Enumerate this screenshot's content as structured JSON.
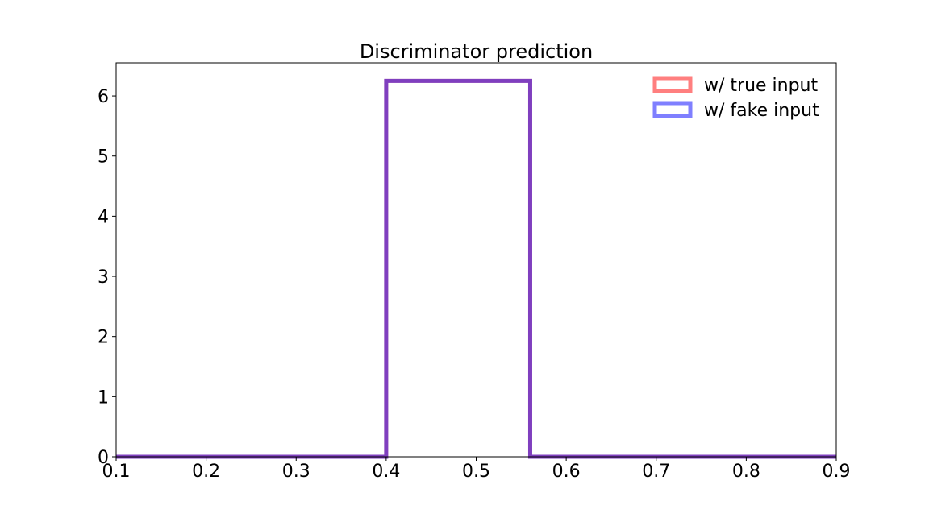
{
  "chart_data": {
    "type": "histogram-step",
    "title": "Discriminator prediction",
    "xlabel": "",
    "ylabel": "",
    "xlim": [
      0.1,
      0.9
    ],
    "ylim": [
      0,
      6.55
    ],
    "x_ticks": [
      "0.1",
      "0.2",
      "0.3",
      "0.4",
      "0.5",
      "0.6",
      "0.7",
      "0.8",
      "0.9"
    ],
    "y_ticks": [
      "0",
      "1",
      "2",
      "3",
      "4",
      "5",
      "6"
    ],
    "grid": false,
    "legend_position": "top-right",
    "series": [
      {
        "name": "w/ true input",
        "color": "#ff0000",
        "alpha": 0.5,
        "bin_edges": [
          0.1,
          0.4,
          0.56,
          0.9
        ],
        "density": [
          0,
          6.25,
          0
        ]
      },
      {
        "name": "w/ fake input",
        "color": "#0000ff",
        "alpha": 0.5,
        "bin_edges": [
          0.1,
          0.4,
          0.56,
          0.9
        ],
        "density": [
          0,
          6.25,
          0
        ]
      }
    ]
  }
}
